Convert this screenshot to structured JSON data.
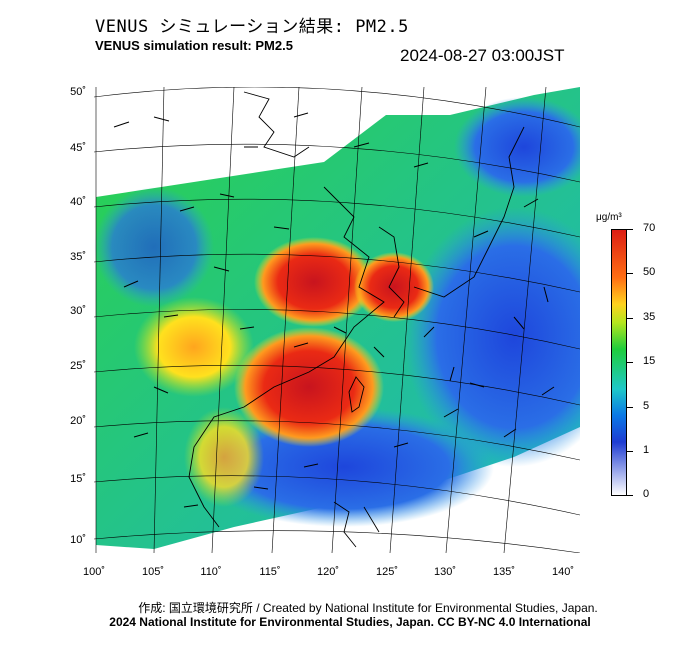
{
  "title_jp": "VENUS シミュレーション結果: PM2.5",
  "title_en": "VENUS simulation result: PM2.5",
  "datetime": "2024-08-27 03:00JST",
  "lat_labels": [
    "50˚",
    "45˚",
    "40˚",
    "35˚",
    "30˚",
    "25˚",
    "20˚",
    "15˚",
    "10˚"
  ],
  "lon_labels": [
    "100˚",
    "105˚",
    "110˚",
    "115˚",
    "120˚",
    "125˚",
    "130˚",
    "135˚",
    "140˚"
  ],
  "colorbar": {
    "unit": "μg/m³",
    "ticks": [
      "70",
      "50",
      "35",
      "15",
      "5",
      "1",
      "0"
    ]
  },
  "credit_line1": "作成: 国立環境研究所 / Created by National Institute for Environmental Studies, Japan.",
  "credit_line2": "2024 National Institute for Environmental Studies, Japan. CC BY-NC 4.0 International",
  "colors": {
    "high": "#dc1e14",
    "mid": "#1ecd3c",
    "low": "#1e3cd2",
    "background": "#ffffff"
  }
}
